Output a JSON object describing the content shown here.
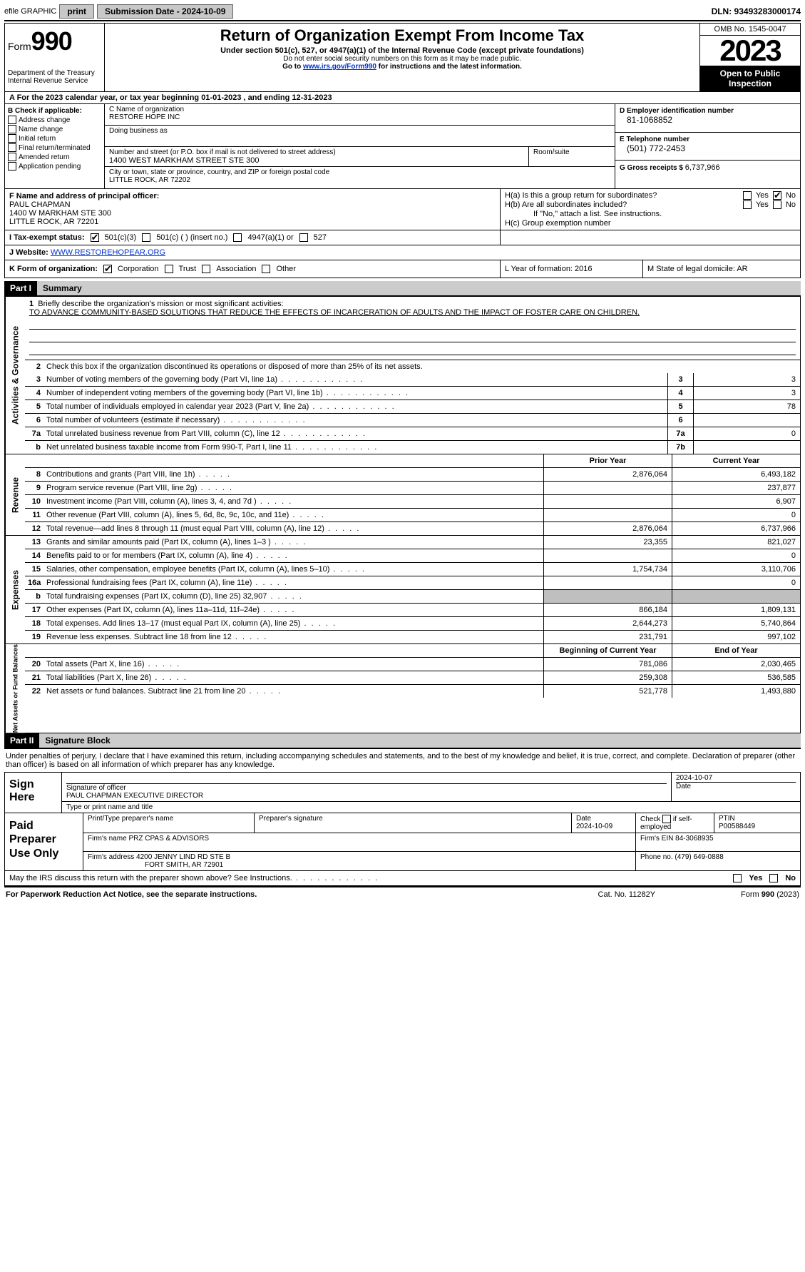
{
  "topbar": {
    "efile_label": "efile GRAPHIC",
    "print_btn": "print",
    "submission_label": "Submission Date - 2024-10-09",
    "dln": "DLN: 93493283000174"
  },
  "header": {
    "form_word": "Form",
    "form_num": "990",
    "dept": "Department of the Treasury\nInternal Revenue Service",
    "title": "Return of Organization Exempt From Income Tax",
    "under": "Under section 501(c), 527, or 4947(a)(1) of the Internal Revenue Code (except private foundations)",
    "ssn_warn": "Do not enter social security numbers on this form as it may be made public.",
    "goto_pre": "Go to ",
    "goto_link": "www.irs.gov/Form990",
    "goto_post": " for instructions and the latest information.",
    "omb": "OMB No. 1545-0047",
    "year": "2023",
    "open": "Open to Public Inspection"
  },
  "row_a": "A   For the 2023 calendar year, or tax year beginning 01-01-2023    , and ending 12-31-2023",
  "section_b": {
    "label": "B Check if applicable:",
    "items": [
      "Address change",
      "Name change",
      "Initial return",
      "Final return/terminated",
      "Amended return",
      "Application pending"
    ]
  },
  "section_c": {
    "name_lbl": "C Name of organization",
    "name": "RESTORE HOPE INC",
    "dba_lbl": "Doing business as",
    "dba": "",
    "street_lbl": "Number and street (or P.O. box if mail is not delivered to street address)",
    "street": "1400 WEST MARKHAM STREET STE 300",
    "suite_lbl": "Room/suite",
    "suite": "",
    "city_lbl": "City or town, state or province, country, and ZIP or foreign postal code",
    "city": "LITTLE ROCK, AR   72202"
  },
  "section_d": {
    "ein_lbl": "D Employer identification number",
    "ein": "81-1068852",
    "tel_lbl": "E Telephone number",
    "tel": "(501) 772-2453",
    "gross_lbl": "G Gross receipts $ ",
    "gross": "6,737,966"
  },
  "section_f": {
    "lbl": "F  Name and address of principal officer:",
    "name": "PAUL CHAPMAN",
    "street": "1400 W MARKHAM STE 300",
    "city": "LITTLE ROCK, AR  72201"
  },
  "section_h": {
    "ha": "H(a)  Is this a group return for subordinates?",
    "hb": "H(b)  Are all subordinates included?",
    "hb_note": "If \"No,\" attach a list. See instructions.",
    "hc": "H(c)  Group exemption number ",
    "yes": "Yes",
    "no": "No"
  },
  "row_i": {
    "lbl": "I     Tax-exempt status:",
    "opt1": "501(c)(3)",
    "opt2": "501(c) (  ) (insert no.)",
    "opt3": "4947(a)(1) or",
    "opt4": "527"
  },
  "row_j": {
    "lbl": "J    Website: ",
    "url": "WWW.RESTOREHOPEAR.ORG"
  },
  "row_k": {
    "lbl": "K Form of organization:",
    "opts": [
      "Corporation",
      "Trust",
      "Association",
      "Other"
    ]
  },
  "row_l": "L Year of formation: 2016",
  "row_m": "M State of legal domicile: AR",
  "part1_label": "Part I",
  "part1_title": "Summary",
  "governance": {
    "q1_lbl": "Briefly describe the organization's mission or most significant activities:",
    "q1_text": "TO ADVANCE COMMUNITY-BASED SOLUTIONS THAT REDUCE THE EFFECTS OF INCARCERATION OF ADULTS AND THE IMPACT OF FOSTER CARE ON CHILDREN.",
    "q2": "Check this box        if the organization discontinued its operations or disposed of more than 25% of its net assets.",
    "lines": [
      {
        "n": "3",
        "d": "Number of voting members of the governing body (Part VI, line 1a)",
        "box": "3",
        "v": "3"
      },
      {
        "n": "4",
        "d": "Number of independent voting members of the governing body (Part VI, line 1b)",
        "box": "4",
        "v": "3"
      },
      {
        "n": "5",
        "d": "Total number of individuals employed in calendar year 2023 (Part V, line 2a)",
        "box": "5",
        "v": "78"
      },
      {
        "n": "6",
        "d": "Total number of volunteers (estimate if necessary)",
        "box": "6",
        "v": ""
      },
      {
        "n": "7a",
        "d": "Total unrelated business revenue from Part VIII, column (C), line 12",
        "box": "7a",
        "v": "0"
      },
      {
        "n": "b",
        "d": "Net unrelated business taxable income from Form 990-T, Part I, line 11",
        "box": "7b",
        "v": ""
      }
    ]
  },
  "col_hdrs": {
    "prior": "Prior Year",
    "current": "Current Year"
  },
  "revenue": [
    {
      "n": "8",
      "d": "Contributions and grants (Part VIII, line 1h)",
      "p": "2,876,064",
      "c": "6,493,182"
    },
    {
      "n": "9",
      "d": "Program service revenue (Part VIII, line 2g)",
      "p": "",
      "c": "237,877"
    },
    {
      "n": "10",
      "d": "Investment income (Part VIII, column (A), lines 3, 4, and 7d )",
      "p": "",
      "c": "6,907"
    },
    {
      "n": "11",
      "d": "Other revenue (Part VIII, column (A), lines 5, 6d, 8c, 9c, 10c, and 11e)",
      "p": "",
      "c": "0"
    },
    {
      "n": "12",
      "d": "Total revenue—add lines 8 through 11 (must equal Part VIII, column (A), line 12)",
      "p": "2,876,064",
      "c": "6,737,966"
    }
  ],
  "expenses": [
    {
      "n": "13",
      "d": "Grants and similar amounts paid (Part IX, column (A), lines 1–3 )",
      "p": "23,355",
      "c": "821,027"
    },
    {
      "n": "14",
      "d": "Benefits paid to or for members (Part IX, column (A), line 4)",
      "p": "",
      "c": "0"
    },
    {
      "n": "15",
      "d": "Salaries, other compensation, employee benefits (Part IX, column (A), lines 5–10)",
      "p": "1,754,734",
      "c": "3,110,706"
    },
    {
      "n": "16a",
      "d": "Professional fundraising fees (Part IX, column (A), line 11e)",
      "p": "",
      "c": "0"
    },
    {
      "n": "b",
      "d": "Total fundraising expenses (Part IX, column (D), line 25) 32,907",
      "p": "GRAY",
      "c": "GRAY"
    },
    {
      "n": "17",
      "d": "Other expenses (Part IX, column (A), lines 11a–11d, 11f–24e)",
      "p": "866,184",
      "c": "1,809,131"
    },
    {
      "n": "18",
      "d": "Total expenses. Add lines 13–17 (must equal Part IX, column (A), line 25)",
      "p": "2,644,273",
      "c": "5,740,864"
    },
    {
      "n": "19",
      "d": "Revenue less expenses. Subtract line 18 from line 12",
      "p": "231,791",
      "c": "997,102"
    }
  ],
  "net_hdrs": {
    "begin": "Beginning of Current Year",
    "end": "End of Year"
  },
  "netassets": [
    {
      "n": "20",
      "d": "Total assets (Part X, line 16)",
      "p": "781,086",
      "c": "2,030,465"
    },
    {
      "n": "21",
      "d": "Total liabilities (Part X, line 26)",
      "p": "259,308",
      "c": "536,585"
    },
    {
      "n": "22",
      "d": "Net assets or fund balances. Subtract line 21 from line 20",
      "p": "521,778",
      "c": "1,493,880"
    }
  ],
  "part2_label": "Part II",
  "part2_title": "Signature Block",
  "sig_declaration": "Under penalties of perjury, I declare that I have examined this return, including accompanying schedules and statements, and to the best of my knowledge and belief, it is true, correct, and complete. Declaration of preparer (other than officer) is based on all information of which preparer has any knowledge.",
  "sign": {
    "lbl": "Sign Here",
    "sig_lbl": "Signature of officer",
    "officer": "PAUL CHAPMAN  EXECUTIVE DIRECTOR",
    "type_lbl": "Type or print name and title",
    "date_lbl": "Date",
    "date": "2024-10-07"
  },
  "prep": {
    "lbl": "Paid Preparer Use Only",
    "name_lbl": "Print/Type preparer's name",
    "sig_lbl": "Preparer's signature",
    "date_lbl": "Date",
    "date": "2024-10-09",
    "self_lbl": "Check         if self-employed",
    "ptin_lbl": "PTIN",
    "ptin": "P00588449",
    "firm_name_lbl": "Firm's name    ",
    "firm_name": "PRZ CPAS & ADVISORS",
    "firm_ein_lbl": "Firm's EIN  ",
    "firm_ein": "84-3068935",
    "firm_addr_lbl": "Firm's address ",
    "firm_addr1": "4200 JENNY LIND RD STE B",
    "firm_addr2": "FORT SMITH, AR  72901",
    "phone_lbl": "Phone no. ",
    "phone": "(479) 649-0888"
  },
  "footer_q": "May the IRS discuss this return with the preparer shown above? See Instructions.",
  "bottom": {
    "l": "For Paperwork Reduction Act Notice, see the separate instructions.",
    "m": "Cat. No. 11282Y",
    "r": "Form 990 (2023)"
  },
  "vert": {
    "gov": "Activities & Governance",
    "rev": "Revenue",
    "exp": "Expenses",
    "net": "Net Assets or Fund Balances"
  }
}
